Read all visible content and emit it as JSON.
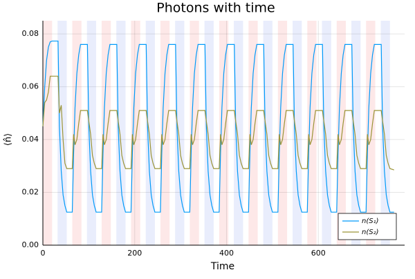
{
  "chart_data": {
    "type": "line",
    "title": "Photons with time",
    "x_label": "Time",
    "y_label": "⟨n̂⟩",
    "x": [
      0,
      4,
      8,
      12,
      16,
      20,
      33,
      36,
      40,
      44,
      48,
      52,
      64,
      67,
      70,
      74,
      78,
      82,
      97,
      100,
      104,
      108,
      112,
      116,
      128,
      131,
      134,
      138,
      142,
      146,
      161,
      164,
      168,
      172,
      176,
      180,
      192,
      195,
      198,
      202,
      206,
      210,
      225,
      228,
      232,
      236,
      240,
      244,
      256,
      259,
      262,
      266,
      270,
      274,
      289,
      292,
      296,
      300,
      304,
      308,
      320,
      323,
      326,
      330,
      334,
      338,
      353,
      356,
      360,
      364,
      368,
      372,
      384,
      387,
      390,
      394,
      398,
      402,
      417,
      420,
      424,
      428,
      432,
      436,
      448,
      451,
      454,
      458,
      462,
      466,
      481,
      484,
      488,
      492,
      496,
      500,
      512,
      515,
      518,
      522,
      526,
      530,
      545,
      548,
      552,
      556,
      560,
      564,
      576,
      579,
      582,
      586,
      590,
      594,
      609,
      612,
      616,
      620,
      624,
      628,
      640,
      643,
      646,
      650,
      654,
      658,
      673,
      676,
      680,
      684,
      688,
      692,
      704,
      707,
      710,
      714,
      718,
      722,
      737,
      740,
      744,
      748,
      752,
      756,
      765
    ],
    "series": [
      {
        "name": "n(S₁)",
        "color": "#009af9",
        "values": [
          0.045,
          0.06,
          0.07,
          0.075,
          0.077,
          0.0773,
          0.0773,
          0.045,
          0.028,
          0.019,
          0.015,
          0.0125,
          0.0125,
          0.035,
          0.052,
          0.065,
          0.072,
          0.076,
          0.076,
          0.045,
          0.028,
          0.019,
          0.015,
          0.0125,
          0.0125,
          0.035,
          0.052,
          0.065,
          0.072,
          0.076,
          0.076,
          0.045,
          0.028,
          0.019,
          0.015,
          0.0125,
          0.0125,
          0.035,
          0.052,
          0.065,
          0.072,
          0.076,
          0.076,
          0.045,
          0.028,
          0.019,
          0.015,
          0.0125,
          0.0125,
          0.035,
          0.052,
          0.065,
          0.072,
          0.076,
          0.076,
          0.045,
          0.028,
          0.019,
          0.015,
          0.0125,
          0.0125,
          0.035,
          0.052,
          0.065,
          0.072,
          0.076,
          0.076,
          0.045,
          0.028,
          0.019,
          0.015,
          0.0125,
          0.0125,
          0.035,
          0.052,
          0.065,
          0.072,
          0.076,
          0.076,
          0.045,
          0.028,
          0.019,
          0.015,
          0.0125,
          0.0125,
          0.035,
          0.052,
          0.065,
          0.072,
          0.076,
          0.076,
          0.045,
          0.028,
          0.019,
          0.015,
          0.0125,
          0.0125,
          0.035,
          0.052,
          0.065,
          0.072,
          0.076,
          0.076,
          0.045,
          0.028,
          0.019,
          0.015,
          0.0125,
          0.0125,
          0.035,
          0.052,
          0.065,
          0.072,
          0.076,
          0.076,
          0.045,
          0.028,
          0.019,
          0.015,
          0.0125,
          0.0125,
          0.035,
          0.052,
          0.065,
          0.072,
          0.076,
          0.076,
          0.045,
          0.028,
          0.019,
          0.015,
          0.0125,
          0.0125,
          0.035,
          0.052,
          0.065,
          0.072,
          0.076,
          0.076,
          0.045,
          0.028,
          0.019,
          0.015,
          0.0125,
          0.0125
        ]
      },
      {
        "name": "n(S₂)",
        "color": "#9a9436",
        "values": [
          0.045,
          0.054,
          0.055,
          0.058,
          0.064,
          0.064,
          0.064,
          0.05,
          0.053,
          0.04,
          0.031,
          0.029,
          0.029,
          0.042,
          0.038,
          0.04,
          0.046,
          0.051,
          0.051,
          0.047,
          0.042,
          0.034,
          0.031,
          0.029,
          0.029,
          0.042,
          0.038,
          0.04,
          0.046,
          0.051,
          0.051,
          0.047,
          0.042,
          0.034,
          0.031,
          0.029,
          0.029,
          0.042,
          0.038,
          0.04,
          0.046,
          0.051,
          0.051,
          0.047,
          0.042,
          0.034,
          0.031,
          0.029,
          0.029,
          0.042,
          0.038,
          0.04,
          0.046,
          0.051,
          0.051,
          0.047,
          0.042,
          0.034,
          0.031,
          0.029,
          0.029,
          0.042,
          0.038,
          0.04,
          0.046,
          0.051,
          0.051,
          0.047,
          0.042,
          0.034,
          0.031,
          0.029,
          0.029,
          0.042,
          0.038,
          0.04,
          0.046,
          0.051,
          0.051,
          0.047,
          0.042,
          0.034,
          0.031,
          0.029,
          0.029,
          0.042,
          0.038,
          0.04,
          0.046,
          0.051,
          0.051,
          0.047,
          0.042,
          0.034,
          0.031,
          0.029,
          0.029,
          0.042,
          0.038,
          0.04,
          0.046,
          0.051,
          0.051,
          0.047,
          0.042,
          0.034,
          0.031,
          0.029,
          0.029,
          0.042,
          0.038,
          0.04,
          0.046,
          0.051,
          0.051,
          0.047,
          0.042,
          0.034,
          0.031,
          0.029,
          0.029,
          0.042,
          0.038,
          0.04,
          0.046,
          0.051,
          0.051,
          0.047,
          0.042,
          0.034,
          0.031,
          0.029,
          0.029,
          0.042,
          0.038,
          0.04,
          0.046,
          0.051,
          0.051,
          0.047,
          0.042,
          0.034,
          0.031,
          0.029,
          0.0285
        ]
      }
    ],
    "shaded_bands": [
      {
        "color": "#fde8e8",
        "ranges": [
          [
            0,
            20
          ],
          [
            64,
            84
          ],
          [
            128,
            148
          ],
          [
            192,
            212
          ],
          [
            256,
            276
          ],
          [
            320,
            340
          ],
          [
            384,
            404
          ],
          [
            448,
            468
          ],
          [
            512,
            532
          ],
          [
            576,
            596
          ],
          [
            640,
            660
          ],
          [
            704,
            724
          ]
        ]
      },
      {
        "color": "#e9edfc",
        "ranges": [
          [
            32,
            52
          ],
          [
            96,
            116
          ],
          [
            160,
            180
          ],
          [
            224,
            244
          ],
          [
            288,
            308
          ],
          [
            352,
            372
          ],
          [
            416,
            436
          ],
          [
            480,
            500
          ],
          [
            544,
            564
          ],
          [
            608,
            628
          ],
          [
            672,
            692
          ],
          [
            736,
            756
          ]
        ]
      }
    ],
    "xlim": [
      0,
      788
    ],
    "xticks": [
      0,
      200,
      400,
      600
    ],
    "ylim": [
      0,
      0.085
    ],
    "yticks": [
      {
        "value": 0,
        "label": "0.00"
      },
      {
        "value": 0.02,
        "label": "0.02"
      },
      {
        "value": 0.04,
        "label": "0.04"
      },
      {
        "value": 0.06,
        "label": "0.06"
      },
      {
        "value": 0.08,
        "label": "0.08"
      }
    ],
    "grid": true,
    "legend": "bottom-right"
  }
}
